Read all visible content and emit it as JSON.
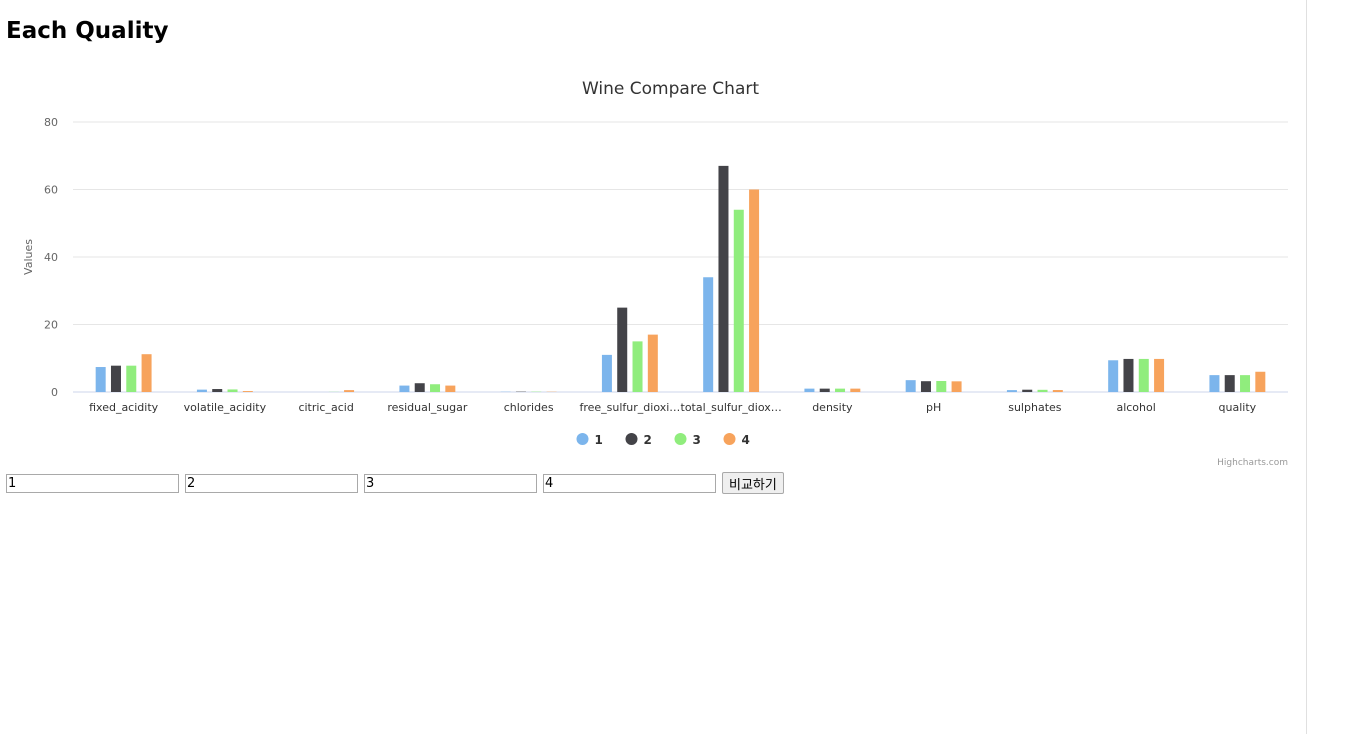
{
  "page": {
    "title": "Each Quality"
  },
  "chart_data": {
    "type": "bar",
    "title": "Wine Compare Chart",
    "ylabel": "Values",
    "xlabel": "",
    "ylim": [
      0,
      80
    ],
    "yticks": [
      0,
      20,
      40,
      60,
      80
    ],
    "grid": true,
    "legend": "bottom-center",
    "categories": [
      "fixed_acidity",
      "volatile_acidity",
      "citric_acid",
      "residual_sugar",
      "chlorides",
      "free_sulfur_dioxi…",
      "total_sulfur_diox…",
      "density",
      "pH",
      "sulphates",
      "alcohol",
      "quality"
    ],
    "series": [
      {
        "name": "1",
        "color": "#7cb5ec",
        "values": [
          7.4,
          0.7,
          0,
          1.9,
          0.076,
          11,
          34,
          0.9978,
          3.51,
          0.56,
          9.4,
          5
        ]
      },
      {
        "name": "2",
        "color": "#434348",
        "values": [
          7.8,
          0.88,
          0,
          2.6,
          0.098,
          25,
          67,
          0.9968,
          3.2,
          0.68,
          9.8,
          5
        ]
      },
      {
        "name": "3",
        "color": "#90ed7d",
        "values": [
          7.8,
          0.76,
          0.04,
          2.3,
          0.092,
          15,
          54,
          0.997,
          3.26,
          0.65,
          9.8,
          5
        ]
      },
      {
        "name": "4",
        "color": "#f7a35c",
        "values": [
          11.2,
          0.28,
          0.56,
          1.9,
          0.075,
          17,
          60,
          0.998,
          3.16,
          0.58,
          9.8,
          6
        ]
      }
    ],
    "credits": "Highcharts.com"
  },
  "controls": {
    "inputs": [
      "1",
      "2",
      "3",
      "4"
    ],
    "compare_label": "비교하기"
  }
}
